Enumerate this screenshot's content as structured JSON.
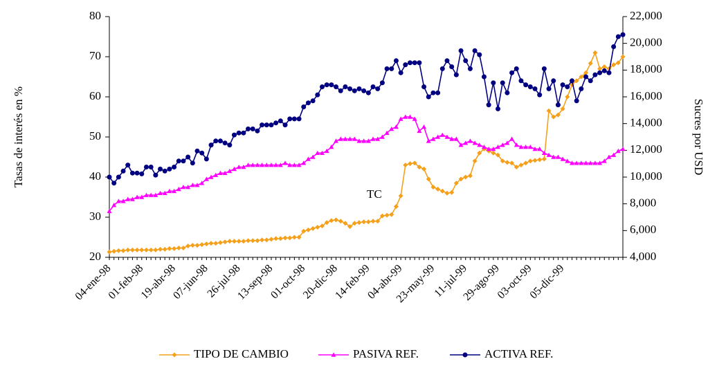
{
  "chart_data": {
    "type": "line",
    "y_label": "Tasas de interés en %",
    "y2_label": "Sucres por USD",
    "annotation": "TC",
    "categories": [
      "04-ene-98",
      null,
      null,
      null,
      null,
      null,
      null,
      "01-feb-98",
      null,
      null,
      null,
      null,
      null,
      null,
      "19-abr-98",
      null,
      null,
      null,
      null,
      null,
      null,
      "07-jun-98",
      null,
      null,
      null,
      null,
      null,
      null,
      "26-jul-98",
      null,
      null,
      null,
      null,
      null,
      null,
      "13-sep-98",
      null,
      null,
      null,
      null,
      null,
      null,
      "01-oct-98",
      null,
      null,
      null,
      null,
      null,
      null,
      "20-dic-98",
      null,
      null,
      null,
      null,
      null,
      null,
      "14-feb-99",
      null,
      null,
      null,
      null,
      null,
      null,
      "04-abr-99",
      null,
      null,
      null,
      null,
      null,
      null,
      "23-may-99",
      null,
      null,
      null,
      null,
      null,
      null,
      "11-jul-99",
      null,
      null,
      null,
      null,
      null,
      null,
      "29-ago-99",
      null,
      null,
      null,
      null,
      null,
      null,
      "03-oct-99",
      null,
      null,
      null,
      null,
      null,
      null,
      "05-dic-99",
      null,
      null,
      null,
      null,
      null,
      null,
      null,
      null,
      null,
      null,
      null,
      null,
      null
    ],
    "series": [
      {
        "name": "TIPO DE CAMBIO",
        "color": "#f5a01a",
        "marker": "diamond",
        "axis": "y2",
        "values": [
          4400,
          4450,
          4500,
          4500,
          4550,
          4550,
          4550,
          4550,
          4550,
          4550,
          4550,
          4600,
          4600,
          4650,
          4650,
          4700,
          4700,
          4850,
          4900,
          4900,
          4950,
          5000,
          5050,
          5050,
          5100,
          5150,
          5200,
          5200,
          5200,
          5200,
          5250,
          5250,
          5250,
          5300,
          5300,
          5350,
          5400,
          5400,
          5450,
          5450,
          5500,
          5500,
          5950,
          6050,
          6150,
          6250,
          6350,
          6600,
          6750,
          6800,
          6700,
          6550,
          6300,
          6550,
          6600,
          6650,
          6650,
          6700,
          6700,
          7100,
          7150,
          7200,
          7800,
          8600,
          10900,
          11000,
          11050,
          10750,
          10600,
          9850,
          9250,
          9100,
          8950,
          8800,
          8850,
          9550,
          9850,
          10000,
          10100,
          11200,
          11800,
          12100,
          11950,
          11800,
          11650,
          11200,
          11100,
          11050,
          10750,
          10900,
          11050,
          11200,
          11250,
          11300,
          11350,
          14950,
          14500,
          14650,
          15100,
          16000,
          16900,
          17200,
          17500,
          17800,
          18500,
          19300,
          18100,
          18250,
          18100,
          18400,
          18550,
          19000
        ]
      },
      {
        "name": "PASIVA REF.",
        "color": "#ff00ff",
        "marker": "triangle",
        "values": [
          31.5,
          33,
          34,
          34,
          34.5,
          34.5,
          35,
          35,
          35.5,
          35.5,
          35.5,
          36,
          36,
          36.5,
          36.5,
          37,
          37.5,
          37.5,
          38,
          38,
          38.5,
          39.5,
          40,
          40.5,
          41,
          41,
          41.5,
          42,
          42.5,
          42.5,
          43,
          43,
          43,
          43,
          43,
          43,
          43,
          43,
          43.5,
          43,
          43,
          43,
          43.5,
          44.5,
          45,
          46,
          46,
          46.5,
          47.5,
          49,
          49.5,
          49.5,
          49.5,
          49.5,
          49,
          49,
          49,
          49.5,
          49.5,
          50,
          51,
          52,
          52.5,
          54.5,
          55,
          55,
          54.5,
          51.5,
          52.5,
          49,
          49.5,
          50,
          50.5,
          50,
          49.5,
          49.5,
          48,
          48.5,
          49,
          48.5,
          48,
          47.5,
          47,
          47,
          47.5,
          48,
          48.5,
          49.5,
          48,
          47.5,
          47.5,
          47.5,
          47,
          47,
          46,
          45.5,
          45,
          45,
          44.5,
          44,
          43.5,
          43.5,
          43.5,
          43.5,
          43.5,
          43.5,
          43.5,
          44,
          45,
          45.5,
          46.5,
          47
        ]
      },
      {
        "name": "ACTIVA REF.",
        "color": "#000080",
        "marker": "circle",
        "values": [
          40,
          38.5,
          40,
          41.5,
          43,
          41,
          41,
          40.8,
          42.5,
          42.5,
          40.5,
          42,
          41.5,
          42,
          42.5,
          44,
          44,
          45,
          43.5,
          46.5,
          46,
          44.5,
          48,
          49,
          49,
          48.5,
          48,
          50.5,
          51,
          51,
          52,
          52,
          51.5,
          53,
          53,
          53,
          53.5,
          54,
          53,
          54.5,
          54.5,
          54.5,
          57.5,
          58.5,
          59,
          60.5,
          62.5,
          63,
          63,
          62.5,
          61.5,
          62.5,
          62,
          61.5,
          62,
          61.5,
          61,
          62.5,
          62,
          63.5,
          67,
          67,
          69,
          66,
          68,
          68.5,
          68.5,
          68.5,
          62.5,
          60,
          61,
          61,
          67,
          69,
          67.5,
          65.5,
          71.5,
          69,
          67,
          71.5,
          70.5,
          65,
          58,
          63.5,
          57,
          63.5,
          61,
          66,
          67,
          64,
          63,
          62.5,
          62,
          60.5,
          67,
          62,
          64,
          58,
          63,
          62.5,
          64,
          59,
          62,
          65,
          64,
          65.5,
          66,
          66.5,
          66,
          72.5,
          75,
          75.5
        ]
      }
    ],
    "ylim": [
      20,
      80
    ],
    "yticks": [
      20,
      30,
      40,
      50,
      60,
      70,
      80
    ],
    "y2lim": [
      4000,
      22000
    ],
    "y2ticks": [
      {
        "value": 4000,
        "label": "4,000"
      },
      {
        "value": 6000,
        "label": "6,000"
      },
      {
        "value": 8000,
        "label": "8,000"
      },
      {
        "value": 10000,
        "label": "10,000"
      },
      {
        "value": 12000,
        "label": "12,000"
      },
      {
        "value": 14000,
        "label": "14,000"
      },
      {
        "value": 16000,
        "label": "16,000"
      },
      {
        "value": 18000,
        "label": "18,000"
      },
      {
        "value": 20000,
        "label": "20,000"
      },
      {
        "value": 22000,
        "label": "22,000"
      }
    ],
    "legend": "bottom"
  }
}
